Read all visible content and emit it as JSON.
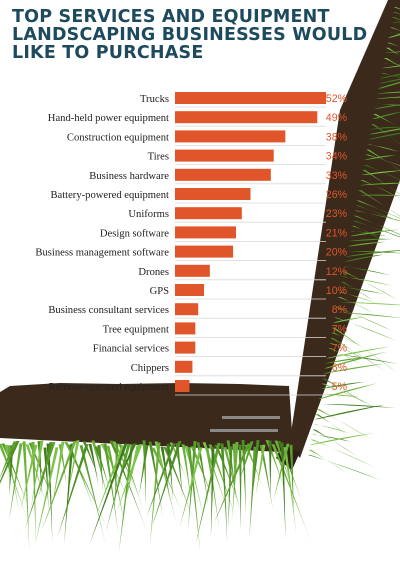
{
  "title": "TOP SERVICES AND EQUIPMENT\nLANDSCAPING BUSINESSES WOULD\nLIKE TO PURCHASE",
  "colors": {
    "title": "#1d4a5c",
    "bar": "#e0552a",
    "value_label": "#e0552a",
    "soil": "#3b2a1c",
    "grass": "#5fa030",
    "separator": "#8a8a8a"
  },
  "chart_data": {
    "type": "bar",
    "orientation": "horizontal",
    "title": "TOP SERVICES AND EQUIPMENT LANDSCAPING BUSINESSES WOULD LIKE TO PURCHASE",
    "categories": [
      "Trucks",
      "Hand-held power equipment",
      "Construction equipment",
      "Tires",
      "Business hardware",
      "Battery-powered equipment",
      "Uniforms",
      "Design software",
      "Business management software",
      "Drones",
      "GPS",
      "Business consultant services",
      "Tree equipment",
      "Financial services",
      "Chippers",
      "Remote-operated equipment"
    ],
    "values": [
      52,
      49,
      38,
      34,
      33,
      26,
      23,
      21,
      20,
      12,
      10,
      8,
      7,
      7,
      6,
      5
    ],
    "value_labels": [
      "52%",
      "49%",
      "38%",
      "34%",
      "33%",
      "26%",
      "23%",
      "21%",
      "20%",
      "12%",
      "10%",
      "8%",
      "7%",
      "7%",
      "6%",
      "5%"
    ],
    "unit": "%",
    "xlim": [
      0,
      52
    ],
    "grid": false,
    "legend": "none"
  }
}
